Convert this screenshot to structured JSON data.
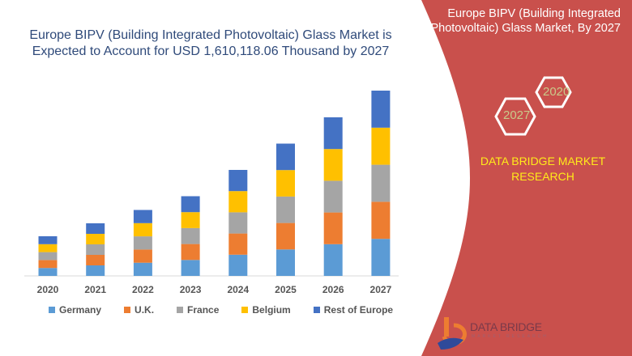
{
  "title": "Europe BIPV (Building Integrated Photovoltaic) Glass Market is Expected to Account for USD 1,610,118.06 Thousand by 2027",
  "side_panel": {
    "title": "Europe BIPV (Building Integrated Photovoltaic) Glass Market, By 2027",
    "hex_labels": [
      "2020",
      "2027"
    ],
    "brand": "DATA BRIDGE MARKET RESEARCH",
    "logo_text": "DATA BRIDGE",
    "logo_sub": "MARKET RESEARCH",
    "color": "#c9504c"
  },
  "chart_data": {
    "type": "bar",
    "stacked": true,
    "title": "Europe BIPV (Building Integrated Photovoltaic) Glass Market is Expected to Account for USD 1,610,118.06 Thousand by 2027",
    "xlabel": "",
    "ylabel": "",
    "y_axis_shown": false,
    "grid": false,
    "legend_position": "bottom",
    "ylim": [
      0,
      250
    ],
    "categories": [
      "2020",
      "2021",
      "2022",
      "2023",
      "2024",
      "2025",
      "2026",
      "2027"
    ],
    "series": [
      {
        "name": "Germany",
        "color": "#5b9bd5",
        "values": [
          9.8,
          13,
          16.3,
          19.7,
          26.2,
          32.7,
          39.2,
          45.8
        ]
      },
      {
        "name": "U.K.",
        "color": "#ed7d31",
        "values": [
          9.8,
          13,
          16.3,
          19.7,
          26.2,
          32.7,
          39.2,
          45.8
        ]
      },
      {
        "name": "France",
        "color": "#a5a5a5",
        "values": [
          9.8,
          13,
          16.3,
          19.7,
          26.2,
          32.7,
          39.2,
          45.8
        ]
      },
      {
        "name": "Belgium",
        "color": "#ffc000",
        "values": [
          9.8,
          13,
          16.3,
          19.7,
          26.2,
          32.7,
          39.2,
          45.8
        ]
      },
      {
        "name": "Rest of Europe",
        "color": "#4472c4",
        "values": [
          9.8,
          13,
          16.3,
          19.7,
          26.2,
          32.7,
          39.2,
          45.8
        ]
      }
    ]
  }
}
